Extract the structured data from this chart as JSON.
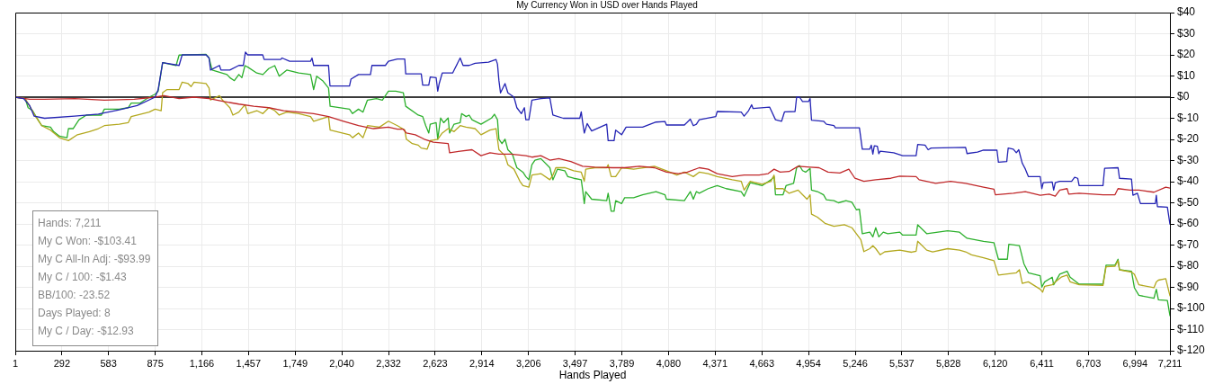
{
  "chart_data": {
    "type": "line",
    "title": "My Currency Won in USD over Hands Played",
    "xlabel": "Hands Played",
    "annotations": [
      "Hands: 7,211",
      "My C Won: -$103.41",
      "My C All-In Adj: -$93.99",
      "My C / 100: -$1.43",
      "BB/100: -23.52",
      "Days Played: 8",
      "My C / Day: -$12.93"
    ],
    "xlim": [
      1,
      7211
    ],
    "xticks": [
      1,
      292,
      583,
      875,
      {
        "value": 1166,
        "label": "1,166"
      },
      {
        "value": 1457,
        "label": "1,457"
      },
      {
        "value": 1749,
        "label": "1,749"
      },
      {
        "value": 2040,
        "label": "2,040"
      },
      {
        "value": 2332,
        "label": "2,332"
      },
      {
        "value": 2623,
        "label": "2,623"
      },
      {
        "value": 2914,
        "label": "2,914"
      },
      {
        "value": 3206,
        "label": "3,206"
      },
      {
        "value": 3497,
        "label": "3,497"
      },
      {
        "value": 3789,
        "label": "3,789"
      },
      {
        "value": 4080,
        "label": "4,080"
      },
      {
        "value": 4371,
        "label": "4,371"
      },
      {
        "value": 4663,
        "label": "4,663"
      },
      {
        "value": 4954,
        "label": "4,954"
      },
      {
        "value": 5246,
        "label": "5,246"
      },
      {
        "value": 5537,
        "label": "5,537"
      },
      {
        "value": 5828,
        "label": "5,828"
      },
      {
        "value": 6120,
        "label": "6,120"
      },
      {
        "value": 6411,
        "label": "6,411"
      },
      {
        "value": 6703,
        "label": "6,703"
      },
      {
        "value": 6994,
        "label": "6,994"
      },
      {
        "value": 7211,
        "label": "7,211"
      }
    ],
    "ylim": [
      -120,
      40
    ],
    "yticks": [
      {
        "value": 40,
        "label": "$40"
      },
      {
        "value": 30,
        "label": "$30"
      },
      {
        "value": 20,
        "label": "$20"
      },
      {
        "value": 10,
        "label": "$10"
      },
      {
        "value": 0,
        "label": "$0"
      },
      {
        "value": -10,
        "label": "$-10"
      },
      {
        "value": -20,
        "label": "$-20"
      },
      {
        "value": -30,
        "label": "$-30"
      },
      {
        "value": -40,
        "label": "$-40"
      },
      {
        "value": -50,
        "label": "$-50"
      },
      {
        "value": -60,
        "label": "$-60"
      },
      {
        "value": -70,
        "label": "$-70"
      },
      {
        "value": -80,
        "label": "$-80"
      },
      {
        "value": -90,
        "label": "$-90"
      },
      {
        "value": -100,
        "label": "$-100"
      },
      {
        "value": -110,
        "label": "$-110"
      },
      {
        "value": -120,
        "label": "$-120"
      }
    ],
    "grid": true,
    "legend": false,
    "marker": "none",
    "line_style": "solid",
    "ref_lines": [
      {
        "axis": "y",
        "value": 0,
        "color": "#000000"
      }
    ],
    "series": [
      {
        "color": "#2cb02c",
        "x": [
          1,
          63,
          81,
          109,
          128,
          166,
          221,
          240,
          277,
          324,
          333,
          362,
          399,
          445,
          539,
          557,
          650,
          706,
          725,
          781,
          837,
          874,
          893,
          921,
          1005,
          1024,
          1192,
          1211,
          1230,
          1323,
          1341,
          1369,
          1397,
          1416,
          1435,
          1453,
          1509,
          1547,
          1584,
          1621,
          1649,
          1696,
          1771,
          1845,
          1864,
          1883,
          1920,
          1957,
          1967,
          2088,
          2107,
          2144,
          2172,
          2200,
          2256,
          2293,
          2331,
          2377,
          2424,
          2439,
          2517,
          2545,
          2564,
          2583,
          2592,
          2629,
          2639,
          2657,
          2676,
          2704,
          2713,
          2741,
          2779,
          2788,
          2816,
          2835,
          2853,
          2909,
          2975,
          2993,
          3012,
          3021,
          3040,
          3059,
          3077,
          3105,
          3133,
          3171,
          3189,
          3208,
          3227,
          3246,
          3283,
          3339,
          3358,
          3386,
          3432,
          3451,
          3488,
          3535,
          3544,
          3554,
          3563,
          3600,
          3694,
          3703,
          3722,
          3740,
          3750,
          3787,
          3806,
          3862,
          3918,
          4002,
          4058,
          4067,
          4179,
          4216,
          4235,
          4254,
          4272,
          4328,
          4384,
          4440,
          4534,
          4552,
          4590,
          4664,
          4720,
          4739,
          4748,
          4795,
          4814,
          4861,
          4880,
          4898,
          4917,
          4936,
          4964,
          4973,
          5010,
          5048,
          5066,
          5113,
          5141,
          5188,
          5225,
          5253,
          5272,
          5290,
          5337,
          5356,
          5374,
          5393,
          5421,
          5449,
          5524,
          5542,
          5626,
          5636,
          5692,
          5823,
          5897,
          5944,
          6047,
          6112,
          6140,
          6196,
          6205,
          6271,
          6299,
          6327,
          6401,
          6411,
          6429,
          6476,
          6485,
          6523,
          6569,
          6588,
          6644,
          6793,
          6812,
          6868,
          6887,
          6896,
          6971,
          6989,
          7017,
          7111,
          7126,
          7139,
          7195,
          7211
        ],
        "values": [
          0,
          -0.7,
          -5,
          -6.4,
          -8.9,
          -13.5,
          -14.2,
          -16.3,
          -18.5,
          -19.2,
          -14.9,
          -14.9,
          -10.7,
          -8.5,
          -8.5,
          -5.7,
          -5.7,
          -5,
          -2.8,
          -2.8,
          0,
          1.4,
          2.8,
          16.3,
          14.9,
          19.9,
          20.3,
          18.5,
          12.8,
          10.7,
          9.2,
          7.8,
          10.7,
          9.2,
          14.9,
          14.2,
          11.4,
          10.7,
          13.5,
          14.9,
          9.9,
          12.8,
          11.4,
          10.7,
          3.6,
          9.9,
          7.8,
          4.3,
          -4.3,
          -5.7,
          -7.8,
          -5.7,
          -7.1,
          -1.4,
          -0.7,
          -1.4,
          2.8,
          2.8,
          2.1,
          -4.3,
          -8.5,
          -9.2,
          -13.5,
          -17,
          -12.8,
          -12.1,
          -19.9,
          -9.9,
          -12.1,
          -9.9,
          -17,
          -12.8,
          -12.1,
          -7.8,
          -9.2,
          -8.5,
          -10.7,
          -12.8,
          -9.9,
          -8.1,
          -10.7,
          -19.9,
          -22,
          -19.9,
          -24.9,
          -27,
          -33.4,
          -35.5,
          -37.6,
          -39.1,
          -32,
          -29.8,
          -29.1,
          -33.4,
          -39.1,
          -34.1,
          -34.8,
          -37.6,
          -38.4,
          -39.1,
          -44,
          -50.4,
          -44.7,
          -48.3,
          -49,
          -45.5,
          -54,
          -54,
          -49,
          -50.4,
          -47.6,
          -47.6,
          -46.2,
          -44.7,
          -46.2,
          -48.3,
          -49,
          -44.7,
          -48.3,
          -44.7,
          -45.5,
          -43.3,
          -41.9,
          -43.3,
          -44.7,
          -46.9,
          -40.5,
          -41.9,
          -39.1,
          -37.6,
          -46.2,
          -46.2,
          -41.9,
          -40.8,
          -33.4,
          -32.4,
          -34.8,
          -35.5,
          -33.7,
          -44,
          -44.7,
          -46.2,
          -48.6,
          -49,
          -50,
          -49,
          -49.7,
          -53.3,
          -53,
          -64.6,
          -63.9,
          -66.1,
          -61.8,
          -66.1,
          -63.9,
          -64.6,
          -63.9,
          -65.3,
          -65.3,
          -60.4,
          -64.6,
          -63.2,
          -63.9,
          -66.8,
          -68.2,
          -68.9,
          -76.7,
          -76.7,
          -69.6,
          -70.3,
          -78.8,
          -83.1,
          -84.5,
          -89.9,
          -87.4,
          -85.2,
          -88.8,
          -83.8,
          -82.4,
          -85.2,
          -88.5,
          -88.5,
          -79.5,
          -79.5,
          -76.7,
          -81.7,
          -82.4,
          -90.2,
          -93.8,
          -95.2,
          -90.9,
          -95.9,
          -96.2,
          -103.4
        ]
      },
      {
        "color": "#b3a81e",
        "x": [
          1,
          63,
          91,
          128,
          166,
          221,
          277,
          333,
          389,
          464,
          520,
          557,
          650,
          706,
          725,
          837,
          874,
          912,
          921,
          949,
          1024,
          1043,
          1080,
          1099,
          1117,
          1192,
          1211,
          1220,
          1276,
          1295,
          1341,
          1360,
          1397,
          1435,
          1453,
          1509,
          1547,
          1584,
          1621,
          1649,
          1696,
          1771,
          1845,
          1864,
          1957,
          1967,
          2088,
          2107,
          2144,
          2172,
          2200,
          2275,
          2331,
          2387,
          2433,
          2443,
          2480,
          2517,
          2536,
          2573,
          2592,
          2639,
          2667,
          2704,
          2741,
          2779,
          2816,
          2872,
          2909,
          2965,
          3003,
          3021,
          3059,
          3077,
          3115,
          3152,
          3171,
          3208,
          3227,
          3283,
          3339,
          3358,
          3376,
          3432,
          3488,
          3535,
          3554,
          3563,
          3619,
          3694,
          3703,
          3722,
          3750,
          3787,
          3862,
          3992,
          4067,
          4132,
          4179,
          4235,
          4272,
          4328,
          4384,
          4478,
          4534,
          4552,
          4590,
          4664,
          4720,
          4739,
          4748,
          4795,
          4833,
          4870,
          4889,
          4917,
          4945,
          4964,
          4973,
          5010,
          5057,
          5113,
          5178,
          5225,
          5253,
          5281,
          5300,
          5337,
          5356,
          5374,
          5402,
          5430,
          5524,
          5598,
          5626,
          5636,
          5692,
          5729,
          5823,
          5897,
          5935,
          5972,
          6047,
          6112,
          6140,
          6252,
          6271,
          6289,
          6327,
          6401,
          6416,
          6429,
          6476,
          6495,
          6532,
          6569,
          6588,
          6644,
          6793,
          6812,
          6868,
          6887,
          6896,
          6971,
          6989,
          7017,
          7111,
          7126,
          7139,
          7185,
          7211
        ],
        "values": [
          0,
          -0.7,
          -4.3,
          -9.2,
          -13.5,
          -15.6,
          -19.2,
          -20.6,
          -17.8,
          -16.3,
          -14.9,
          -13.5,
          -12.8,
          -12.1,
          -9.2,
          -7.1,
          -5.7,
          -6.4,
          2.1,
          3.6,
          3.6,
          7.1,
          6.4,
          5,
          7.1,
          6.4,
          4.3,
          -1.4,
          0.7,
          -1.4,
          -5,
          -8.5,
          -7.1,
          -3.6,
          -7.8,
          -6.4,
          -7.8,
          -5,
          -6.4,
          -8.5,
          -7.1,
          -7.8,
          -9.2,
          -11.4,
          -9.2,
          -15.6,
          -17.8,
          -19.2,
          -17,
          -19.2,
          -13.5,
          -14.2,
          -11.4,
          -13.5,
          -15.6,
          -19.9,
          -22,
          -22.7,
          -24.1,
          -24.6,
          -20.6,
          -19.9,
          -17,
          -14.9,
          -16.3,
          -13.5,
          -14.2,
          -14.9,
          -17.8,
          -15.6,
          -14.9,
          -24.9,
          -27.7,
          -32,
          -34.1,
          -39.8,
          -41.9,
          -42.6,
          -36.9,
          -36.2,
          -39.1,
          -36.9,
          -33.4,
          -33.4,
          -34.8,
          -35.5,
          -39.8,
          -34.1,
          -33.4,
          -33.4,
          -32,
          -37.6,
          -37.6,
          -33.4,
          -34.1,
          -32.7,
          -34.8,
          -36.9,
          -35.5,
          -37.6,
          -35.5,
          -36.2,
          -37.6,
          -39.1,
          -39.8,
          -44,
          -39.8,
          -41.2,
          -39.8,
          -36.9,
          -43.3,
          -43.3,
          -45.5,
          -44.5,
          -44,
          -46.2,
          -48.3,
          -46.2,
          -55.4,
          -56.8,
          -59.7,
          -61.1,
          -60.4,
          -61.8,
          -64.6,
          -67.5,
          -73.1,
          -71.7,
          -70.3,
          -71.7,
          -74.6,
          -73.2,
          -72.4,
          -73.4,
          -72.9,
          -68.2,
          -72.4,
          -73.2,
          -71.7,
          -72.4,
          -73.2,
          -74.6,
          -76,
          -77.4,
          -84.2,
          -83.1,
          -81.7,
          -88.1,
          -87.4,
          -90.9,
          -92.3,
          -89.5,
          -88.8,
          -87.4,
          -85.2,
          -84.2,
          -87.4,
          -88.8,
          -89.1,
          -80.3,
          -80,
          -77.4,
          -81.7,
          -82.8,
          -83.8,
          -88.8,
          -90.2,
          -87.4,
          -86.6,
          -85.9,
          -94
        ]
      },
      {
        "color": "#c0282a",
        "x": [
          1,
          91,
          184,
          371,
          557,
          744,
          874,
          930,
          1024,
          1117,
          1211,
          1304,
          1397,
          1490,
          1584,
          1677,
          1771,
          1864,
          1957,
          2051,
          2144,
          2237,
          2331,
          2387,
          2424,
          2443,
          2499,
          2555,
          2611,
          2704,
          2713,
          2779,
          2853,
          2909,
          2965,
          3021,
          3096,
          3189,
          3227,
          3283,
          3339,
          3395,
          3470,
          3544,
          3619,
          3731,
          3806,
          3899,
          3992,
          4067,
          4142,
          4198,
          4272,
          4328,
          4384,
          4478,
          4552,
          4646,
          4702,
          4739,
          4777,
          4833,
          4889,
          4964,
          5020,
          5076,
          5150,
          5206,
          5244,
          5300,
          5374,
          5468,
          5524,
          5626,
          5645,
          5748,
          5841,
          5935,
          6047,
          6112,
          6121,
          6233,
          6308,
          6401,
          6457,
          6495,
          6523,
          6569,
          6579,
          6644,
          6793,
          6868,
          6887,
          6961,
          7017,
          7111,
          7185,
          7211
        ],
        "values": [
          0,
          -1,
          -1,
          -0.7,
          -1.4,
          -1,
          0,
          0.7,
          -0.7,
          0,
          -0.7,
          -2.1,
          -3.3,
          -4.3,
          -5,
          -6.4,
          -7.1,
          -7.8,
          -9.2,
          -11.4,
          -13.5,
          -14.9,
          -14.2,
          -15.2,
          -15.2,
          -17,
          -17.8,
          -19.9,
          -21.3,
          -22,
          -26.3,
          -25.6,
          -24.9,
          -27.7,
          -26.3,
          -27,
          -27,
          -27.7,
          -28.4,
          -27.7,
          -29.8,
          -29.1,
          -30.5,
          -32.7,
          -33.1,
          -33.4,
          -33.4,
          -32.7,
          -33.4,
          -35.5,
          -36.2,
          -35.5,
          -33.4,
          -34.1,
          -36.2,
          -37.6,
          -36.9,
          -36.9,
          -36.2,
          -34.1,
          -35.5,
          -35.2,
          -32.7,
          -33.1,
          -33.4,
          -35.5,
          -35.9,
          -34.1,
          -38.4,
          -39.8,
          -39.1,
          -38.4,
          -37.4,
          -37.6,
          -39.1,
          -40.8,
          -39.8,
          -40.8,
          -42.6,
          -43.6,
          -46.2,
          -45.5,
          -44.7,
          -46.4,
          -45.9,
          -46.9,
          -44,
          -43.3,
          -45.9,
          -45.5,
          -46.2,
          -46.2,
          -43.3,
          -44,
          -44,
          -45,
          -42.6,
          -43
        ]
      },
      {
        "color": "#2424b4",
        "x": [
          1,
          53,
          91,
          119,
          184,
          371,
          520,
          650,
          762,
          874,
          893,
          921,
          1024,
          1043,
          1192,
          1211,
          1220,
          1276,
          1285,
          1341,
          1397,
          1425,
          1438,
          1452,
          1546,
          1555,
          1658,
          1667,
          1714,
          1845,
          1854,
          1864,
          1957,
          1966,
          2088,
          2097,
          2144,
          2219,
          2228,
          2312,
          2331,
          2387,
          2433,
          2439,
          2536,
          2545,
          2583,
          2592,
          2629,
          2639,
          2648,
          2667,
          2732,
          2741,
          2779,
          2797,
          2835,
          2872,
          2956,
          3003,
          3012,
          3021,
          3031,
          3059,
          3077,
          3115,
          3133,
          3161,
          3180,
          3189,
          3208,
          3227,
          3283,
          3339,
          3358,
          3423,
          3526,
          3535,
          3544,
          3554,
          3572,
          3600,
          3694,
          3703,
          3740,
          3750,
          3787,
          3815,
          3918,
          4002,
          4058,
          4067,
          4179,
          4216,
          4235,
          4254,
          4272,
          4375,
          4384,
          4534,
          4552,
          4580,
          4599,
          4608,
          4711,
          4748,
          4786,
          4804,
          4870,
          4880,
          4898,
          4917,
          4954,
          4964,
          4973,
          5048,
          5066,
          5113,
          5122,
          5272,
          5290,
          5337,
          5346,
          5356,
          5365,
          5384,
          5393,
          5402,
          5486,
          5542,
          5626,
          5636,
          5682,
          5701,
          5720,
          5935,
          5944,
          6009,
          6047,
          6131,
          6140,
          6192,
          6201,
          6233,
          6252,
          6267,
          6289,
          6308,
          6327,
          6401,
          6411,
          6420,
          6476,
          6485,
          6495,
          6523,
          6597,
          6616,
          6635,
          6644,
          6793,
          6803,
          6887,
          6896,
          6971,
          6980,
          7008,
          7027,
          7120,
          7126,
          7133,
          7195,
          7211
        ],
        "values": [
          0,
          -0.7,
          -4,
          -9,
          -10,
          -9,
          -8,
          -6,
          -4,
          0,
          3.5,
          16.3,
          15,
          20,
          20,
          18.5,
          12.8,
          15,
          12.8,
          12.8,
          15,
          15,
          21.3,
          20,
          20,
          17.8,
          17.8,
          18.5,
          17,
          17,
          18.5,
          15,
          15,
          5.3,
          5.3,
          8.5,
          10.7,
          10.7,
          15,
          15,
          17,
          18,
          18,
          11,
          11,
          5.7,
          5.7,
          9.5,
          9.2,
          2.8,
          6.4,
          11.4,
          11.4,
          12.8,
          18.5,
          15,
          15,
          16,
          16.5,
          17.8,
          15.6,
          7.8,
          2,
          6.4,
          2,
          0,
          -5,
          -7.8,
          -5,
          -10.7,
          -10.7,
          -1.4,
          -0.7,
          -0.4,
          -8.5,
          -10,
          -10,
          -7,
          -12,
          -17,
          -12.5,
          -16,
          -12.8,
          -20.6,
          -20.6,
          -15.6,
          -17.8,
          -14.2,
          -14.2,
          -11.8,
          -11.5,
          -13.2,
          -13.2,
          -10.4,
          -13.5,
          -12.8,
          -10.7,
          -9.2,
          -6.8,
          -7.1,
          -9,
          -6.4,
          -3.6,
          -5.4,
          -4.7,
          -10.7,
          -11.4,
          -7,
          -6.8,
          0,
          0,
          -2.1,
          -2.1,
          -0.7,
          -10.9,
          -11.4,
          -12.8,
          -13.5,
          -14.5,
          -14.5,
          -24.6,
          -24.6,
          -22.7,
          -27,
          -23,
          -23.2,
          -26.8,
          -25.6,
          -26.3,
          -27.7,
          -27.7,
          -22.4,
          -22.7,
          -24.9,
          -24.1,
          -23.8,
          -26.7,
          -26,
          -25.1,
          -25.1,
          -30.8,
          -30.5,
          -24.1,
          -24.6,
          -26.3,
          -24.9,
          -31.3,
          -34,
          -37.6,
          -37.6,
          -43.3,
          -40.5,
          -40.2,
          -44,
          -40.5,
          -39.8,
          -39.8,
          -37.9,
          -38.4,
          -41.9,
          -41.9,
          -33.7,
          -33.4,
          -38.4,
          -38.8,
          -46.4,
          -45.5,
          -50.4,
          -50.4,
          -46.4,
          -51.8,
          -52.1,
          -60.1
        ]
      }
    ]
  }
}
